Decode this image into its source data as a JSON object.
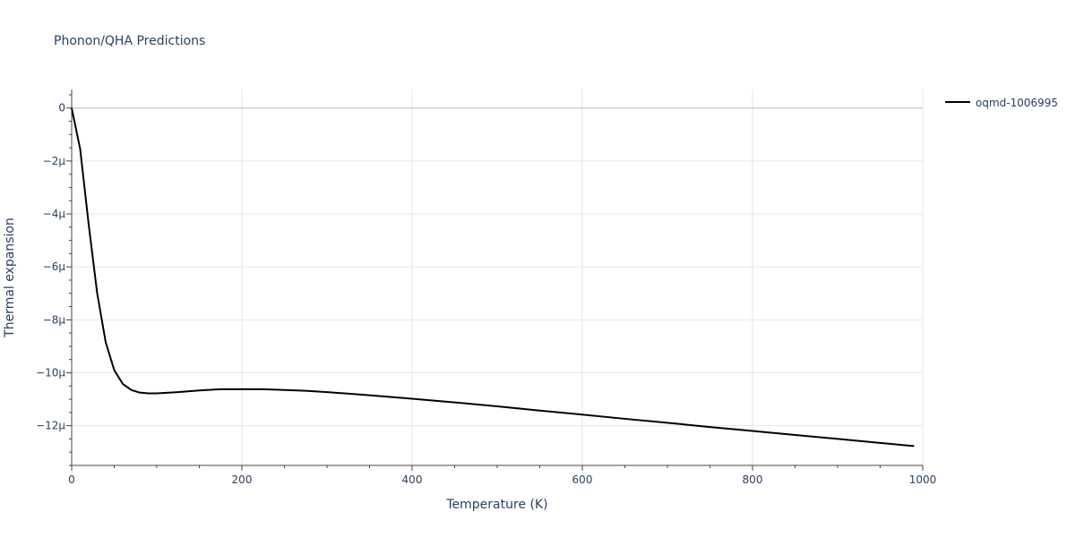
{
  "chart_data": {
    "type": "line",
    "title": "Phonon/QHA Predictions",
    "xlabel": "Temperature (K)",
    "ylabel": "Thermal expansion",
    "xlim": [
      0,
      1000
    ],
    "ylim": [
      -13.5,
      0.7
    ],
    "y_unit_scale": "micro (1e-6)",
    "x_ticks": [
      0,
      200,
      400,
      600,
      800,
      1000
    ],
    "x_tick_labels": [
      "0",
      "200",
      "400",
      "600",
      "800",
      "1000"
    ],
    "y_ticks": [
      0,
      -2,
      -4,
      -6,
      -8,
      -10,
      -12
    ],
    "y_tick_labels": [
      "0",
      "−2μ",
      "−4μ",
      "−6μ",
      "−8μ",
      "−10μ",
      "−12μ"
    ],
    "grid": true,
    "legend_position": "top-right",
    "series": [
      {
        "name": "oqmd-1006995",
        "color": "#000000",
        "x": [
          0,
          10,
          20,
          30,
          40,
          50,
          60,
          70,
          80,
          90,
          100,
          125,
          150,
          175,
          200,
          225,
          250,
          275,
          300,
          350,
          400,
          450,
          500,
          550,
          600,
          650,
          700,
          750,
          800,
          850,
          900,
          950,
          990
        ],
        "y": [
          0,
          -1.55,
          -4.4,
          -7.0,
          -8.85,
          -9.9,
          -10.42,
          -10.65,
          -10.75,
          -10.78,
          -10.78,
          -10.73,
          -10.67,
          -10.62,
          -10.62,
          -10.62,
          -10.65,
          -10.68,
          -10.73,
          -10.85,
          -10.98,
          -11.12,
          -11.27,
          -11.43,
          -11.58,
          -11.74,
          -11.89,
          -12.05,
          -12.2,
          -12.35,
          -12.5,
          -12.65,
          -12.77
        ]
      }
    ]
  }
}
